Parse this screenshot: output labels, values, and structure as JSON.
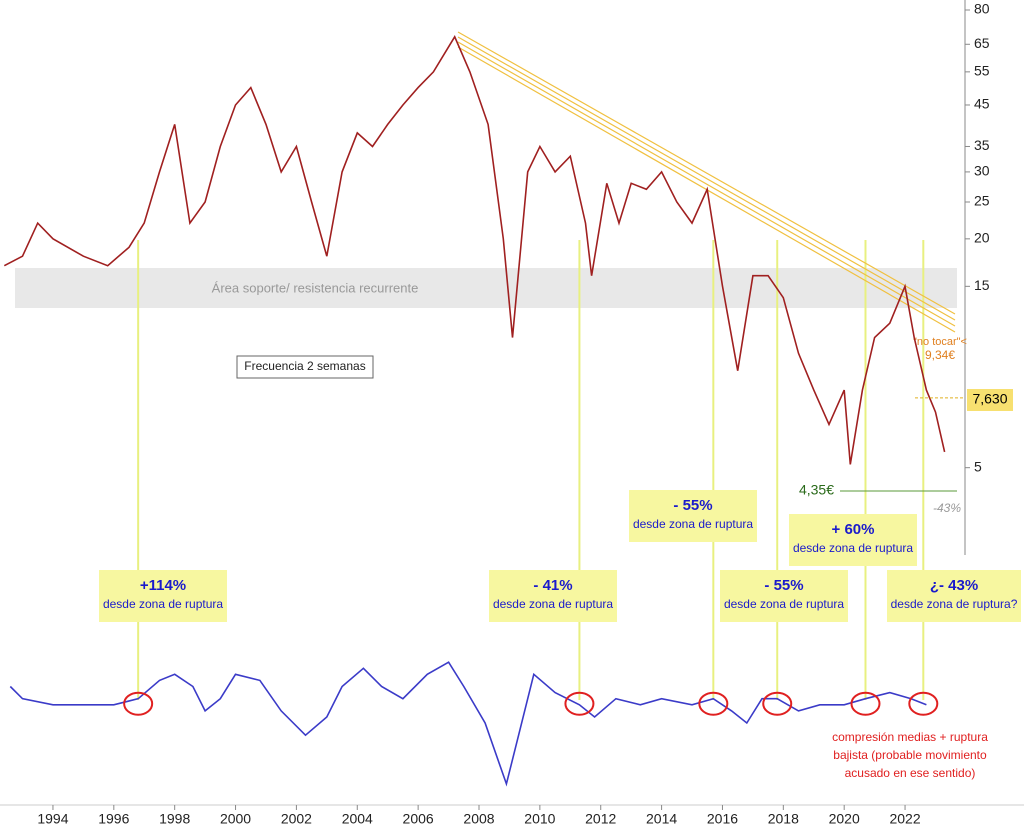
{
  "chart_data": [
    {
      "type": "line",
      "log_scale": true,
      "grid": false,
      "x": [
        1992.4,
        1993,
        1993.5,
        1994,
        1995,
        1995.8,
        1996.5,
        1997,
        1997.5,
        1998,
        1998.5,
        1999,
        1999.5,
        2000,
        2000.5,
        2001,
        2001.5,
        2002,
        2002.5,
        2003,
        2003.5,
        2004,
        2004.5,
        2005,
        2005.5,
        2006,
        2006.5,
        2007.2,
        2007.7,
        2008.3,
        2008.8,
        2009.1,
        2009.6,
        2010,
        2010.5,
        2011,
        2011.5,
        2011.7,
        2012.2,
        2012.6,
        2013,
        2013.5,
        2014,
        2014.5,
        2015,
        2015.5,
        2016,
        2016.5,
        2017,
        2017.5,
        2018,
        2018.5,
        2019,
        2019.5,
        2020,
        2020.2,
        2020.6,
        2021,
        2021.5,
        2022,
        2022.3,
        2022.7,
        2023,
        2023.3
      ],
      "series": [
        {
          "color": "#a02020",
          "values": [
            17,
            18,
            22,
            20,
            18,
            17,
            19,
            22,
            30,
            40,
            22,
            25,
            35,
            45,
            50,
            40,
            30,
            35,
            25,
            18,
            30,
            38,
            35,
            40,
            45,
            50,
            55,
            68,
            55,
            40,
            20,
            11,
            30,
            35,
            30,
            33,
            22,
            16,
            28,
            22,
            28,
            27,
            30,
            25,
            22,
            27,
            15,
            9,
            16,
            16,
            14,
            10,
            8,
            6.5,
            8,
            5.1,
            8,
            11,
            12,
            15,
            11,
            8,
            7,
            5.5
          ]
        }
      ],
      "xlim": [
        1992.26,
        2023.97
      ],
      "ylim": [
        3,
        85
      ],
      "xticks": [
        1994,
        1996,
        1998,
        2000,
        2002,
        2004,
        2006,
        2008,
        2010,
        2012,
        2014,
        2016,
        2018,
        2020,
        2022
      ],
      "yticks": [
        5,
        15,
        20,
        25,
        30,
        35,
        45,
        55,
        65,
        80
      ],
      "last_price": {
        "value": 7.63,
        "label": "7,630"
      },
      "band_label": "Área soporte/ resistencia recurrente",
      "frequency_label": "Frecuencia 2 semanas",
      "no_touch": "\"no tocar\"<",
      "no_touch_price": "9,34€",
      "low_label": "4,35€",
      "target_label": "-43%",
      "annotations": [
        {
          "pct": "+114%",
          "text": "desde zona de ruptura"
        },
        {
          "pct": "- 41%",
          "text": "desde zona de ruptura"
        },
        {
          "pct": "- 55%",
          "text": "desde zona de ruptura"
        },
        {
          "pct": "- 55%",
          "text": "desde zona de ruptura"
        },
        {
          "pct": "+ 60%",
          "text": "desde zona de ruptura"
        },
        {
          "pct": "¿- 43%",
          "text": "desde zona de ruptura?"
        }
      ],
      "signals": [
        1996.8,
        2011.3,
        2015.7,
        2017.8,
        2020.7,
        2022.6
      ]
    },
    {
      "type": "line",
      "x": [
        1992.6,
        1993,
        1994,
        1995,
        1996,
        1996.8,
        1997.5,
        1998,
        1998.6,
        1999,
        1999.5,
        2000,
        2000.8,
        2001.5,
        2002.3,
        2003,
        2003.5,
        2004.2,
        2004.8,
        2005.5,
        2006.3,
        2007,
        2007.5,
        2008.2,
        2008.9,
        2009.3,
        2009.8,
        2010.5,
        2011.3,
        2011.8,
        2012.5,
        2013.3,
        2014,
        2015,
        2015.7,
        2016.3,
        2016.8,
        2017.3,
        2017.8,
        2018.5,
        2019.2,
        2020,
        2020.7,
        2021.5,
        2022.2,
        2022.7
      ],
      "series": [
        {
          "color": "#3b3bc8",
          "values": [
            2,
            0,
            -1,
            -1,
            -1,
            0,
            3,
            4,
            2,
            -2,
            0,
            4,
            3,
            -2,
            -6,
            -3,
            2,
            5,
            2,
            0,
            4,
            6,
            2,
            -4,
            -14,
            -6,
            4,
            1,
            -1,
            -3,
            0,
            -1,
            0,
            -1,
            0,
            -2,
            -4,
            0,
            0,
            -2,
            -1,
            -1,
            0,
            1,
            0,
            -1
          ]
        }
      ],
      "ylim": [
        -15,
        8
      ],
      "note": [
        "compresión medias + ruptura",
        "bajista (probable movimiento",
        "acusado en ese sentido)"
      ]
    }
  ]
}
